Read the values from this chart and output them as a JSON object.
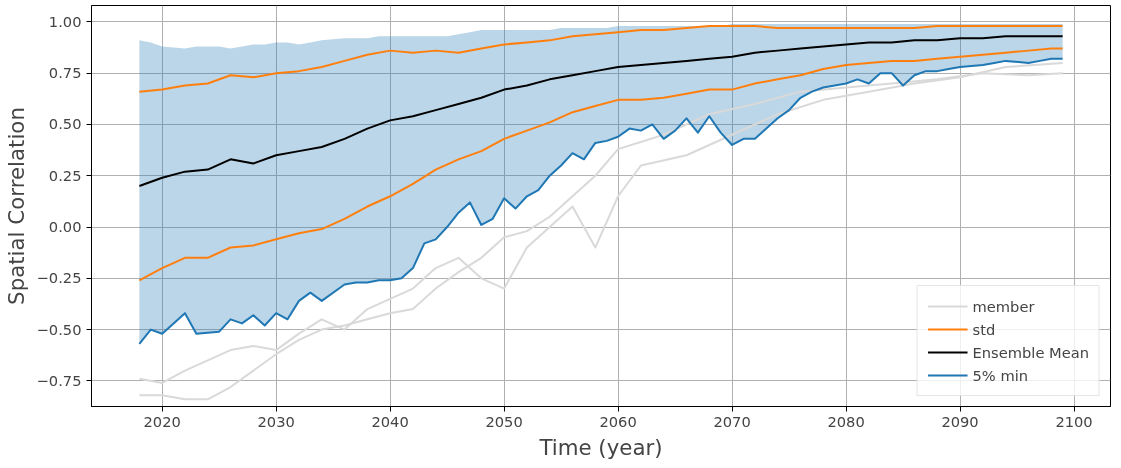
{
  "chart_data": {
    "type": "line",
    "xlabel": "Time (year)",
    "ylabel": "Spatial Correlation",
    "xlim": [
      2013.8,
      2103.2
    ],
    "ylim": [
      -0.875,
      1.08
    ],
    "xticks": [
      2020,
      2030,
      2040,
      2050,
      2060,
      2070,
      2080,
      2090,
      2100
    ],
    "yticks": [
      {
        "value": -0.75,
        "label": "−0.75"
      },
      {
        "value": -0.5,
        "label": "−0.50"
      },
      {
        "value": -0.25,
        "label": "−0.25"
      },
      {
        "value": 0,
        "label": "0.00"
      },
      {
        "value": 0.25,
        "label": "0.25"
      },
      {
        "value": 0.5,
        "label": "0.50"
      },
      {
        "value": 0.75,
        "label": "0.75"
      },
      {
        "value": 1,
        "label": "1.00"
      }
    ],
    "grid": true,
    "legend": "bottom right",
    "series": [
      {
        "name": "member",
        "color": "#d9d9d9",
        "x": [
          2018,
          2020,
          2022,
          2024,
          2026,
          2028,
          2030,
          2032,
          2034,
          2036,
          2038,
          2040,
          2042,
          2044,
          2046,
          2048,
          2050,
          2052,
          2054,
          2056,
          2058,
          2060,
          2064,
          2068,
          2072,
          2076,
          2080,
          2084,
          2088,
          2092,
          2096,
          2099
        ],
        "values": [
          -0.82,
          -0.82,
          -0.84,
          -0.84,
          -0.78,
          -0.7,
          -0.62,
          -0.55,
          -0.5,
          -0.48,
          -0.45,
          -0.42,
          -0.4,
          -0.3,
          -0.22,
          -0.15,
          -0.05,
          -0.02,
          0.05,
          0.15,
          0.25,
          0.38,
          0.45,
          0.55,
          0.6,
          0.66,
          0.68,
          0.7,
          0.72,
          0.75,
          0.74,
          0.75
        ]
      },
      {
        "color": "#d9d9d9",
        "x": [
          2018,
          2020,
          2022,
          2024,
          2026,
          2028,
          2030,
          2032,
          2034,
          2036,
          2038,
          2040,
          2042,
          2044,
          2046,
          2048,
          2050,
          2052,
          2054,
          2056,
          2058,
          2060,
          2062,
          2066,
          2070,
          2074,
          2078,
          2082,
          2086,
          2090,
          2094,
          2099
        ],
        "values": [
          -0.74,
          -0.76,
          -0.7,
          -0.65,
          -0.6,
          -0.58,
          -0.6,
          -0.52,
          -0.45,
          -0.5,
          -0.4,
          -0.35,
          -0.3,
          -0.2,
          -0.15,
          -0.25,
          -0.3,
          -0.1,
          0.0,
          0.1,
          -0.1,
          0.15,
          0.3,
          0.35,
          0.45,
          0.55,
          0.62,
          0.66,
          0.7,
          0.73,
          0.78,
          0.8
        ]
      },
      {
        "name": "std",
        "color": "#ff7f0e",
        "x": [
          2018,
          2020,
          2022,
          2024,
          2026,
          2028,
          2030,
          2032,
          2034,
          2036,
          2038,
          2040,
          2042,
          2044,
          2046,
          2048,
          2050,
          2052,
          2054,
          2056,
          2058,
          2060,
          2062,
          2064,
          2066,
          2068,
          2070,
          2072,
          2074,
          2076,
          2078,
          2080,
          2082,
          2084,
          2086,
          2088,
          2090,
          2092,
          2094,
          2096,
          2098,
          2099
        ],
        "values": [
          0.66,
          0.67,
          0.69,
          0.7,
          0.74,
          0.73,
          0.75,
          0.76,
          0.78,
          0.81,
          0.84,
          0.86,
          0.85,
          0.86,
          0.85,
          0.87,
          0.89,
          0.9,
          0.91,
          0.93,
          0.94,
          0.95,
          0.96,
          0.96,
          0.97,
          0.98,
          0.98,
          0.98,
          0.97,
          0.97,
          0.97,
          0.97,
          0.97,
          0.97,
          0.97,
          0.98,
          0.98,
          0.98,
          0.98,
          0.98,
          0.98,
          0.98
        ]
      },
      {
        "color": "#ff7f0e",
        "x": [
          2018,
          2020,
          2022,
          2024,
          2026,
          2028,
          2030,
          2032,
          2034,
          2036,
          2038,
          2040,
          2042,
          2044,
          2046,
          2048,
          2050,
          2052,
          2054,
          2056,
          2058,
          2060,
          2062,
          2064,
          2066,
          2068,
          2070,
          2072,
          2074,
          2076,
          2078,
          2080,
          2082,
          2084,
          2086,
          2088,
          2090,
          2092,
          2094,
          2096,
          2098,
          2099
        ],
        "values": [
          -0.26,
          -0.2,
          -0.15,
          -0.15,
          -0.1,
          -0.09,
          -0.06,
          -0.03,
          -0.01,
          0.04,
          0.1,
          0.15,
          0.21,
          0.28,
          0.33,
          0.37,
          0.43,
          0.47,
          0.51,
          0.56,
          0.59,
          0.62,
          0.62,
          0.63,
          0.65,
          0.67,
          0.67,
          0.7,
          0.72,
          0.74,
          0.77,
          0.79,
          0.8,
          0.81,
          0.81,
          0.82,
          0.83,
          0.84,
          0.85,
          0.86,
          0.87,
          0.87
        ]
      },
      {
        "name": "Ensemble Mean",
        "color": "#000000",
        "x": [
          2018,
          2020,
          2022,
          2024,
          2026,
          2028,
          2030,
          2032,
          2034,
          2036,
          2038,
          2040,
          2042,
          2044,
          2046,
          2048,
          2050,
          2052,
          2054,
          2056,
          2058,
          2060,
          2062,
          2064,
          2066,
          2068,
          2070,
          2072,
          2074,
          2076,
          2078,
          2080,
          2082,
          2084,
          2086,
          2088,
          2090,
          2092,
          2094,
          2096,
          2098,
          2099
        ],
        "values": [
          0.2,
          0.24,
          0.27,
          0.28,
          0.33,
          0.31,
          0.35,
          0.37,
          0.39,
          0.43,
          0.48,
          0.52,
          0.54,
          0.57,
          0.6,
          0.63,
          0.67,
          0.69,
          0.72,
          0.74,
          0.76,
          0.78,
          0.79,
          0.8,
          0.81,
          0.82,
          0.83,
          0.85,
          0.86,
          0.87,
          0.88,
          0.89,
          0.9,
          0.9,
          0.91,
          0.91,
          0.92,
          0.92,
          0.93,
          0.93,
          0.93,
          0.93
        ]
      },
      {
        "name": "5% min",
        "color": "#1f77b4",
        "x": [
          2018,
          2019,
          2020,
          2022,
          2023,
          2025,
          2026,
          2027,
          2028,
          2029,
          2030,
          2031,
          2032,
          2033,
          2034,
          2036,
          2037,
          2038,
          2039,
          2040,
          2041,
          2042,
          2043,
          2044,
          2045,
          2046,
          2047,
          2048,
          2049,
          2050,
          2051,
          2052,
          2053,
          2054,
          2055,
          2056,
          2057,
          2058,
          2059,
          2060,
          2061,
          2062,
          2063,
          2064,
          2065,
          2066,
          2067,
          2068,
          2069,
          2070,
          2071,
          2072,
          2073,
          2074,
          2075,
          2076,
          2077,
          2078,
          2079,
          2080,
          2081,
          2082,
          2083,
          2084,
          2085,
          2086,
          2087,
          2088,
          2089,
          2090,
          2092,
          2093,
          2094,
          2096,
          2097,
          2098,
          2099
        ],
        "values": [
          -0.57,
          -0.5,
          -0.52,
          -0.42,
          -0.52,
          -0.51,
          -0.45,
          -0.47,
          -0.43,
          -0.48,
          -0.42,
          -0.45,
          -0.36,
          -0.32,
          -0.36,
          -0.28,
          -0.27,
          -0.27,
          -0.26,
          -0.26,
          -0.25,
          -0.2,
          -0.08,
          -0.06,
          0.0,
          0.07,
          0.12,
          0.01,
          0.04,
          0.14,
          0.09,
          0.15,
          0.18,
          0.25,
          0.3,
          0.36,
          0.33,
          0.41,
          0.42,
          0.44,
          0.48,
          0.47,
          0.5,
          0.43,
          0.47,
          0.53,
          0.46,
          0.54,
          0.46,
          0.4,
          0.43,
          0.43,
          0.48,
          0.53,
          0.57,
          0.63,
          0.66,
          0.68,
          0.69,
          0.7,
          0.72,
          0.7,
          0.75,
          0.75,
          0.69,
          0.74,
          0.76,
          0.76,
          0.77,
          0.78,
          0.79,
          0.8,
          0.81,
          0.8,
          0.81,
          0.82,
          0.82
        ],
        "lower": [
          -0.57,
          -0.5,
          -0.52,
          -0.42,
          -0.52,
          -0.51,
          -0.45,
          -0.47,
          -0.43,
          -0.48,
          -0.42,
          -0.45,
          -0.36,
          -0.32,
          -0.36,
          -0.28,
          -0.27,
          -0.27,
          -0.26,
          -0.26,
          -0.25,
          -0.2,
          -0.08,
          -0.06,
          0.0,
          0.07,
          0.12,
          0.01,
          0.04,
          0.14,
          0.09,
          0.15,
          0.18,
          0.25,
          0.3,
          0.36,
          0.33,
          0.41,
          0.42,
          0.44,
          0.48,
          0.47,
          0.5,
          0.43,
          0.47,
          0.53,
          0.46,
          0.54,
          0.46,
          0.4,
          0.43,
          0.43,
          0.48,
          0.53,
          0.57,
          0.63,
          0.66,
          0.68,
          0.69,
          0.7,
          0.72,
          0.7,
          0.75,
          0.75,
          0.69,
          0.74,
          0.76,
          0.76,
          0.77,
          0.78,
          0.79,
          0.8,
          0.81,
          0.8,
          0.81,
          0.82,
          0.82
        ],
        "upper": [
          0.91,
          0.9,
          0.88,
          0.87,
          0.88,
          0.88,
          0.87,
          0.88,
          0.89,
          0.89,
          0.9,
          0.9,
          0.89,
          0.9,
          0.91,
          0.92,
          0.92,
          0.92,
          0.93,
          0.93,
          0.93,
          0.93,
          0.93,
          0.93,
          0.93,
          0.94,
          0.95,
          0.96,
          0.96,
          0.96,
          0.96,
          0.96,
          0.96,
          0.96,
          0.97,
          0.97,
          0.97,
          0.97,
          0.97,
          0.98,
          0.98,
          0.98,
          0.98,
          0.98,
          0.98,
          0.98,
          0.98,
          0.98,
          0.98,
          0.99,
          0.99,
          0.99,
          0.99,
          0.99,
          0.99,
          0.99,
          0.99,
          0.99,
          0.99,
          0.99,
          0.99,
          0.99,
          0.99,
          0.99,
          0.99,
          0.99,
          0.99,
          0.99,
          0.99,
          0.99,
          0.99,
          0.99,
          0.99,
          0.99,
          0.99,
          0.99,
          0.99
        ]
      }
    ]
  }
}
